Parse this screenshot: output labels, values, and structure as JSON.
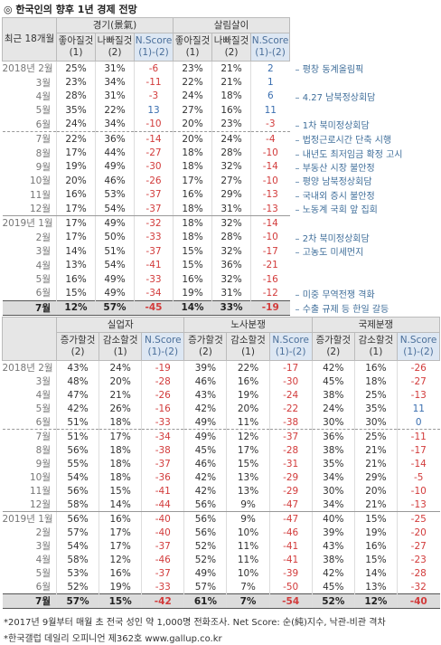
{
  "title": "◎ 한국인의 향후 1년 경제 전망",
  "table1": {
    "corner": "최근 18개월",
    "groups": [
      {
        "title": "경기(景氣)",
        "columns": [
          {
            "label": "좋아질것",
            "code": "(1)"
          },
          {
            "label": "나빠질것",
            "code": "(2)"
          },
          {
            "label": "N.Score",
            "code": "(1)-(2)"
          }
        ]
      },
      {
        "title": "살림살이",
        "columns": [
          {
            "label": "좋아질것",
            "code": "(1)"
          },
          {
            "label": "나빠질것",
            "code": "(2)"
          },
          {
            "label": "N.Score",
            "code": "(1)-(2)"
          }
        ]
      }
    ],
    "rows": [
      {
        "label": "2018년 2월",
        "values": [
          "25%",
          "31%",
          -6,
          "23%",
          "21%",
          2
        ],
        "note": "평창 동계올림픽"
      },
      {
        "label": "3월",
        "values": [
          "23%",
          "34%",
          -11,
          "22%",
          "21%",
          1
        ]
      },
      {
        "label": "4월",
        "values": [
          "28%",
          "31%",
          -3,
          "24%",
          "18%",
          6
        ],
        "note": "4.27 남북정상회담"
      },
      {
        "label": "5월",
        "values": [
          "35%",
          "22%",
          13,
          "27%",
          "16%",
          11
        ]
      },
      {
        "label": "6월",
        "values": [
          "24%",
          "34%",
          -10,
          "20%",
          "23%",
          -3
        ],
        "note": "1차 북미정상회담"
      },
      {
        "label": "7월",
        "values": [
          "22%",
          "36%",
          -14,
          "20%",
          "24%",
          -4
        ],
        "note": "법정근로시간 단축 시행"
      },
      {
        "label": "8월",
        "values": [
          "17%",
          "44%",
          -27,
          "18%",
          "28%",
          -10
        ],
        "note": "내년도 최저임금 확정 고시"
      },
      {
        "label": "9월",
        "values": [
          "19%",
          "49%",
          -30,
          "18%",
          "32%",
          -14
        ],
        "note": "부동산 시장 불안정"
      },
      {
        "label": "10월",
        "values": [
          "20%",
          "46%",
          -26,
          "17%",
          "27%",
          -10
        ],
        "note": "평양 남북정상회담"
      },
      {
        "label": "11월",
        "values": [
          "16%",
          "53%",
          -37,
          "16%",
          "29%",
          -13
        ],
        "note": "국내외 증시 불안정"
      },
      {
        "label": "12월",
        "values": [
          "17%",
          "54%",
          -37,
          "18%",
          "31%",
          -13
        ],
        "note": "노동계 국회 앞 집회"
      },
      {
        "label": "2019년 1월",
        "values": [
          "17%",
          "49%",
          -32,
          "18%",
          "32%",
          -14
        ]
      },
      {
        "label": "2월",
        "values": [
          "17%",
          "50%",
          -33,
          "18%",
          "28%",
          -10
        ],
        "note": "2차 북미정상회담"
      },
      {
        "label": "3월",
        "values": [
          "14%",
          "51%",
          -37,
          "15%",
          "32%",
          -17
        ],
        "note": "고농도 미세먼지"
      },
      {
        "label": "4월",
        "values": [
          "13%",
          "54%",
          -41,
          "15%",
          "36%",
          -21
        ]
      },
      {
        "label": "5월",
        "values": [
          "16%",
          "49%",
          -33,
          "16%",
          "32%",
          -16
        ]
      },
      {
        "label": "6월",
        "values": [
          "15%",
          "49%",
          -34,
          "19%",
          "31%",
          -12
        ],
        "note": "미중 무역전쟁 격화"
      },
      {
        "label": "7월",
        "values": [
          "12%",
          "57%",
          -45,
          "14%",
          "33%",
          -19
        ],
        "note": "수출 규제 등 한일 갈등"
      }
    ]
  },
  "table2": {
    "groups": [
      {
        "title": "실업자",
        "columns": [
          {
            "label": "증가할것",
            "code": "(2)"
          },
          {
            "label": "감소할것",
            "code": "(1)"
          },
          {
            "label": "N.Score",
            "code": "(1)-(2)"
          }
        ]
      },
      {
        "title": "노사분쟁",
        "columns": [
          {
            "label": "증가할것",
            "code": "(2)"
          },
          {
            "label": "감소할것",
            "code": "(1)"
          },
          {
            "label": "N.Score",
            "code": "(1)-(2)"
          }
        ]
      },
      {
        "title": "국제분쟁",
        "columns": [
          {
            "label": "증가할것",
            "code": "(2)"
          },
          {
            "label": "감소할것",
            "code": "(1)"
          },
          {
            "label": "N.Score",
            "code": "(1)-(2)"
          }
        ]
      }
    ],
    "rows": [
      {
        "label": "2018년 2월",
        "values": [
          "43%",
          "24%",
          -19,
          "39%",
          "22%",
          -17,
          "42%",
          "16%",
          -26
        ]
      },
      {
        "label": "3월",
        "values": [
          "48%",
          "20%",
          -28,
          "46%",
          "16%",
          -30,
          "45%",
          "18%",
          -27
        ]
      },
      {
        "label": "4월",
        "values": [
          "47%",
          "21%",
          -26,
          "43%",
          "19%",
          -24,
          "38%",
          "25%",
          -13
        ]
      },
      {
        "label": "5월",
        "values": [
          "42%",
          "26%",
          -16,
          "42%",
          "20%",
          -22,
          "24%",
          "35%",
          11
        ]
      },
      {
        "label": "6월",
        "values": [
          "51%",
          "18%",
          -33,
          "49%",
          "11%",
          -38,
          "30%",
          "30%",
          0
        ]
      },
      {
        "label": "7월",
        "values": [
          "51%",
          "17%",
          -34,
          "49%",
          "12%",
          -37,
          "36%",
          "25%",
          -11
        ]
      },
      {
        "label": "8월",
        "values": [
          "56%",
          "18%",
          -38,
          "45%",
          "17%",
          -28,
          "38%",
          "21%",
          -17
        ]
      },
      {
        "label": "9월",
        "values": [
          "55%",
          "18%",
          -37,
          "46%",
          "15%",
          -31,
          "35%",
          "21%",
          -14
        ]
      },
      {
        "label": "10월",
        "values": [
          "54%",
          "18%",
          -36,
          "42%",
          "13%",
          -29,
          "34%",
          "29%",
          -5
        ]
      },
      {
        "label": "11월",
        "values": [
          "56%",
          "15%",
          -41,
          "42%",
          "13%",
          -29,
          "30%",
          "20%",
          -10
        ]
      },
      {
        "label": "12월",
        "values": [
          "58%",
          "14%",
          -44,
          "56%",
          "9%",
          -47,
          "34%",
          "21%",
          -13
        ]
      },
      {
        "label": "2019년 1월",
        "values": [
          "56%",
          "16%",
          -40,
          "56%",
          "9%",
          -47,
          "40%",
          "15%",
          -25
        ]
      },
      {
        "label": "2월",
        "values": [
          "57%",
          "17%",
          -40,
          "56%",
          "10%",
          -46,
          "39%",
          "19%",
          -20
        ]
      },
      {
        "label": "3월",
        "values": [
          "54%",
          "17%",
          -37,
          "52%",
          "11%",
          -41,
          "43%",
          "16%",
          -27
        ]
      },
      {
        "label": "4월",
        "values": [
          "58%",
          "12%",
          -46,
          "52%",
          "11%",
          -41,
          "38%",
          "15%",
          -23
        ]
      },
      {
        "label": "5월",
        "values": [
          "53%",
          "16%",
          -37,
          "49%",
          "10%",
          -39,
          "42%",
          "14%",
          -28
        ]
      },
      {
        "label": "6월",
        "values": [
          "52%",
          "19%",
          -33,
          "57%",
          "7%",
          -50,
          "45%",
          "13%",
          -32
        ]
      },
      {
        "label": "7월",
        "values": [
          "57%",
          "15%",
          -42,
          "61%",
          "7%",
          -54,
          "52%",
          "12%",
          -40
        ]
      }
    ]
  },
  "footnotes": [
    "*2017년 9월부터 매월 초 전국 성인 약 1,000명 전화조사. Net Score: 순(純)지수, 낙관-비관 격차",
    "*한국갤럽 데일리 오피니언 제362호 www.gallup.co.kr"
  ]
}
